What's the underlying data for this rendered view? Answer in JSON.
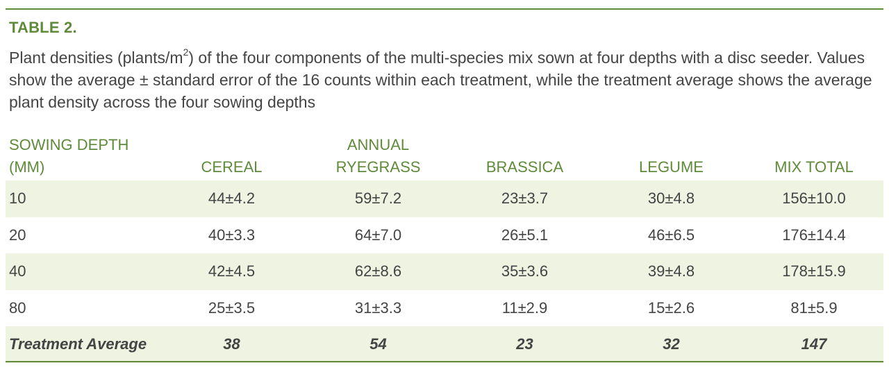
{
  "table_label": "TABLE 2.",
  "caption": {
    "before_sup": "Plant densities (plants/m",
    "sup": "2",
    "after_sup": ") of the four components of the multi-species mix sown at four depths with a disc seeder. Values show the average ± standard error of the 16 counts within each treatment, while the treatment average shows the average plant density across the four sowing depths"
  },
  "headers": {
    "depth_line1": "SOWING DEPTH",
    "depth_line2": "(MM)",
    "cereal": "CEREAL",
    "ryegrass_line1": "ANNUAL",
    "ryegrass_line2": "RYEGRASS",
    "brassica": "BRASSICA",
    "legume": "LEGUME",
    "mix_total": "MIX TOTAL"
  },
  "rows": [
    {
      "depth": "10",
      "cereal": "44±4.2",
      "ryegrass": "59±7.2",
      "brassica": "23±3.7",
      "legume": "30±4.8",
      "mix_total": "156±10.0"
    },
    {
      "depth": "20",
      "cereal": "40±3.3",
      "ryegrass": "64±7.0",
      "brassica": "26±5.1",
      "legume": "46±6.5",
      "mix_total": "176±14.4"
    },
    {
      "depth": "40",
      "cereal": "42±4.5",
      "ryegrass": "62±8.6",
      "brassica": "35±3.6",
      "legume": "39±4.8",
      "mix_total": "178±15.9"
    },
    {
      "depth": "80",
      "cereal": "25±3.5",
      "ryegrass": "31±3.3",
      "brassica": "11±2.9",
      "legume": "15±2.6",
      "mix_total": "81±5.9"
    }
  ],
  "average_row": {
    "label": "Treatment Average",
    "cereal": "38",
    "ryegrass": "54",
    "brassica": "23",
    "legume": "32",
    "mix_total": "147"
  },
  "colors": {
    "accent_green": "#5f8a3a",
    "row_shade": "#eef3e2",
    "text": "#444444"
  }
}
